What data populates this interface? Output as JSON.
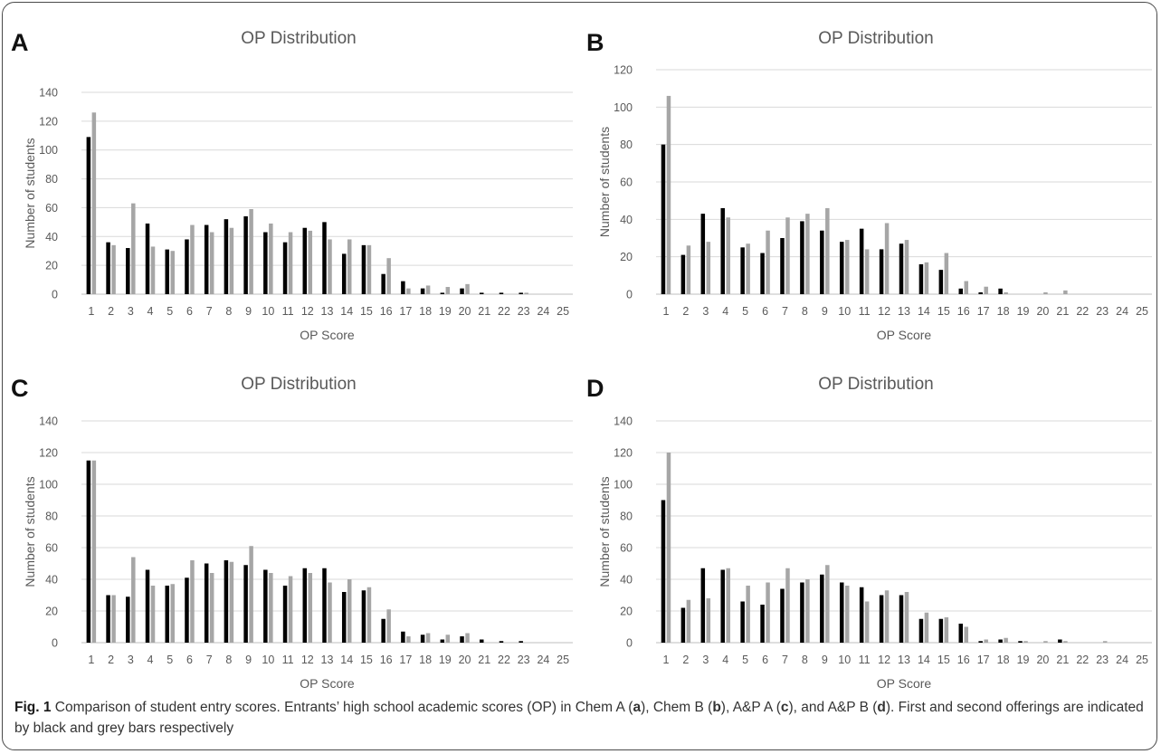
{
  "chart_data": [
    {
      "type": "bar",
      "panel_label": "A",
      "title": "OP Distribution",
      "xlabel": "OP Score",
      "ylabel": "Number of students",
      "ylim": [
        0,
        140
      ],
      "yticks": [
        0,
        20,
        40,
        60,
        80,
        100,
        120,
        140
      ],
      "grid": true,
      "categories": [
        "1",
        "2",
        "3",
        "4",
        "5",
        "6",
        "7",
        "8",
        "9",
        "10",
        "11",
        "12",
        "13",
        "14",
        "15",
        "16",
        "17",
        "18",
        "19",
        "20",
        "21",
        "22",
        "23",
        "24",
        "25"
      ],
      "series": [
        {
          "color": "#000000",
          "values": [
            109,
            36,
            32,
            49,
            31,
            38,
            48,
            52,
            54,
            43,
            36,
            46,
            50,
            28,
            34,
            14,
            9,
            4,
            1,
            4,
            1,
            1,
            1,
            0,
            0
          ]
        },
        {
          "color": "#a6a6a6",
          "values": [
            126,
            34,
            63,
            33,
            30,
            48,
            43,
            46,
            59,
            49,
            43,
            44,
            38,
            38,
            34,
            25,
            4,
            6,
            5,
            7,
            0,
            0,
            1,
            0,
            0
          ]
        }
      ]
    },
    {
      "type": "bar",
      "panel_label": "B",
      "title": "OP Distribution",
      "xlabel": "OP Score",
      "ylabel": "Number of students",
      "ylim": [
        0,
        120
      ],
      "yticks": [
        0,
        20,
        40,
        60,
        80,
        100,
        120
      ],
      "grid": true,
      "categories": [
        "1",
        "2",
        "3",
        "4",
        "5",
        "6",
        "7",
        "8",
        "9",
        "10",
        "11",
        "12",
        "13",
        "14",
        "15",
        "16",
        "17",
        "18",
        "19",
        "20",
        "21",
        "22",
        "23",
        "24",
        "25"
      ],
      "series": [
        {
          "color": "#000000",
          "values": [
            80,
            21,
            43,
            46,
            25,
            22,
            30,
            39,
            34,
            28,
            35,
            24,
            27,
            16,
            13,
            3,
            1,
            3,
            0,
            0,
            0,
            0,
            0,
            0,
            0
          ]
        },
        {
          "color": "#a6a6a6",
          "values": [
            106,
            26,
            28,
            41,
            27,
            34,
            41,
            43,
            46,
            29,
            24,
            38,
            29,
            17,
            22,
            7,
            4,
            1,
            0,
            1,
            2,
            0,
            0,
            0,
            0
          ]
        }
      ]
    },
    {
      "type": "bar",
      "panel_label": "C",
      "title": "OP Distribution",
      "xlabel": "OP Score",
      "ylabel": "Number of students",
      "ylim": [
        0,
        140
      ],
      "yticks": [
        0,
        20,
        40,
        60,
        80,
        100,
        120,
        140
      ],
      "grid": true,
      "categories": [
        "1",
        "2",
        "3",
        "4",
        "5",
        "6",
        "7",
        "8",
        "9",
        "10",
        "11",
        "12",
        "13",
        "14",
        "15",
        "16",
        "17",
        "18",
        "19",
        "20",
        "21",
        "22",
        "23",
        "24",
        "25"
      ],
      "series": [
        {
          "color": "#000000",
          "values": [
            115,
            30,
            29,
            46,
            36,
            41,
            50,
            52,
            49,
            46,
            36,
            47,
            47,
            32,
            33,
            15,
            7,
            5,
            2,
            4,
            2,
            1,
            1,
            0,
            0
          ]
        },
        {
          "color": "#a6a6a6",
          "values": [
            115,
            30,
            54,
            36,
            37,
            52,
            44,
            51,
            61,
            44,
            42,
            44,
            38,
            40,
            35,
            21,
            4,
            6,
            5,
            6,
            0,
            0,
            0,
            0,
            0
          ]
        }
      ]
    },
    {
      "type": "bar",
      "panel_label": "D",
      "title": "OP Distribution",
      "xlabel": "OP Score",
      "ylabel": "Number of students",
      "ylim": [
        0,
        140
      ],
      "yticks": [
        0,
        20,
        40,
        60,
        80,
        100,
        120,
        140
      ],
      "grid": true,
      "categories": [
        "1",
        "2",
        "3",
        "4",
        "5",
        "6",
        "7",
        "8",
        "9",
        "10",
        "11",
        "12",
        "13",
        "14",
        "15",
        "16",
        "17",
        "18",
        "19",
        "20",
        "21",
        "22",
        "23",
        "24",
        "25"
      ],
      "series": [
        {
          "color": "#000000",
          "values": [
            90,
            22,
            47,
            46,
            26,
            24,
            34,
            38,
            43,
            38,
            35,
            30,
            30,
            15,
            15,
            12,
            1,
            2,
            1,
            0,
            2,
            0,
            0,
            0,
            0
          ]
        },
        {
          "color": "#a6a6a6",
          "values": [
            120,
            27,
            28,
            47,
            36,
            38,
            47,
            40,
            49,
            36,
            26,
            33,
            32,
            19,
            16,
            10,
            2,
            3,
            1,
            1,
            1,
            0,
            1,
            0,
            0
          ]
        }
      ]
    }
  ],
  "caption": {
    "fig_label": "Fig. 1",
    "title_sentence": " Comparison of student entry scores.",
    "text_1": " Entrants’ high school academic scores (OP) in Chem A (",
    "a": "a",
    "text_2": "), Chem B (",
    "b": "b",
    "text_3": "), A&P A (",
    "c": "c",
    "text_4": "), and A&P B (",
    "d": "d",
    "text_5": "). First and second offerings are indicated by black and grey bars respectively"
  }
}
